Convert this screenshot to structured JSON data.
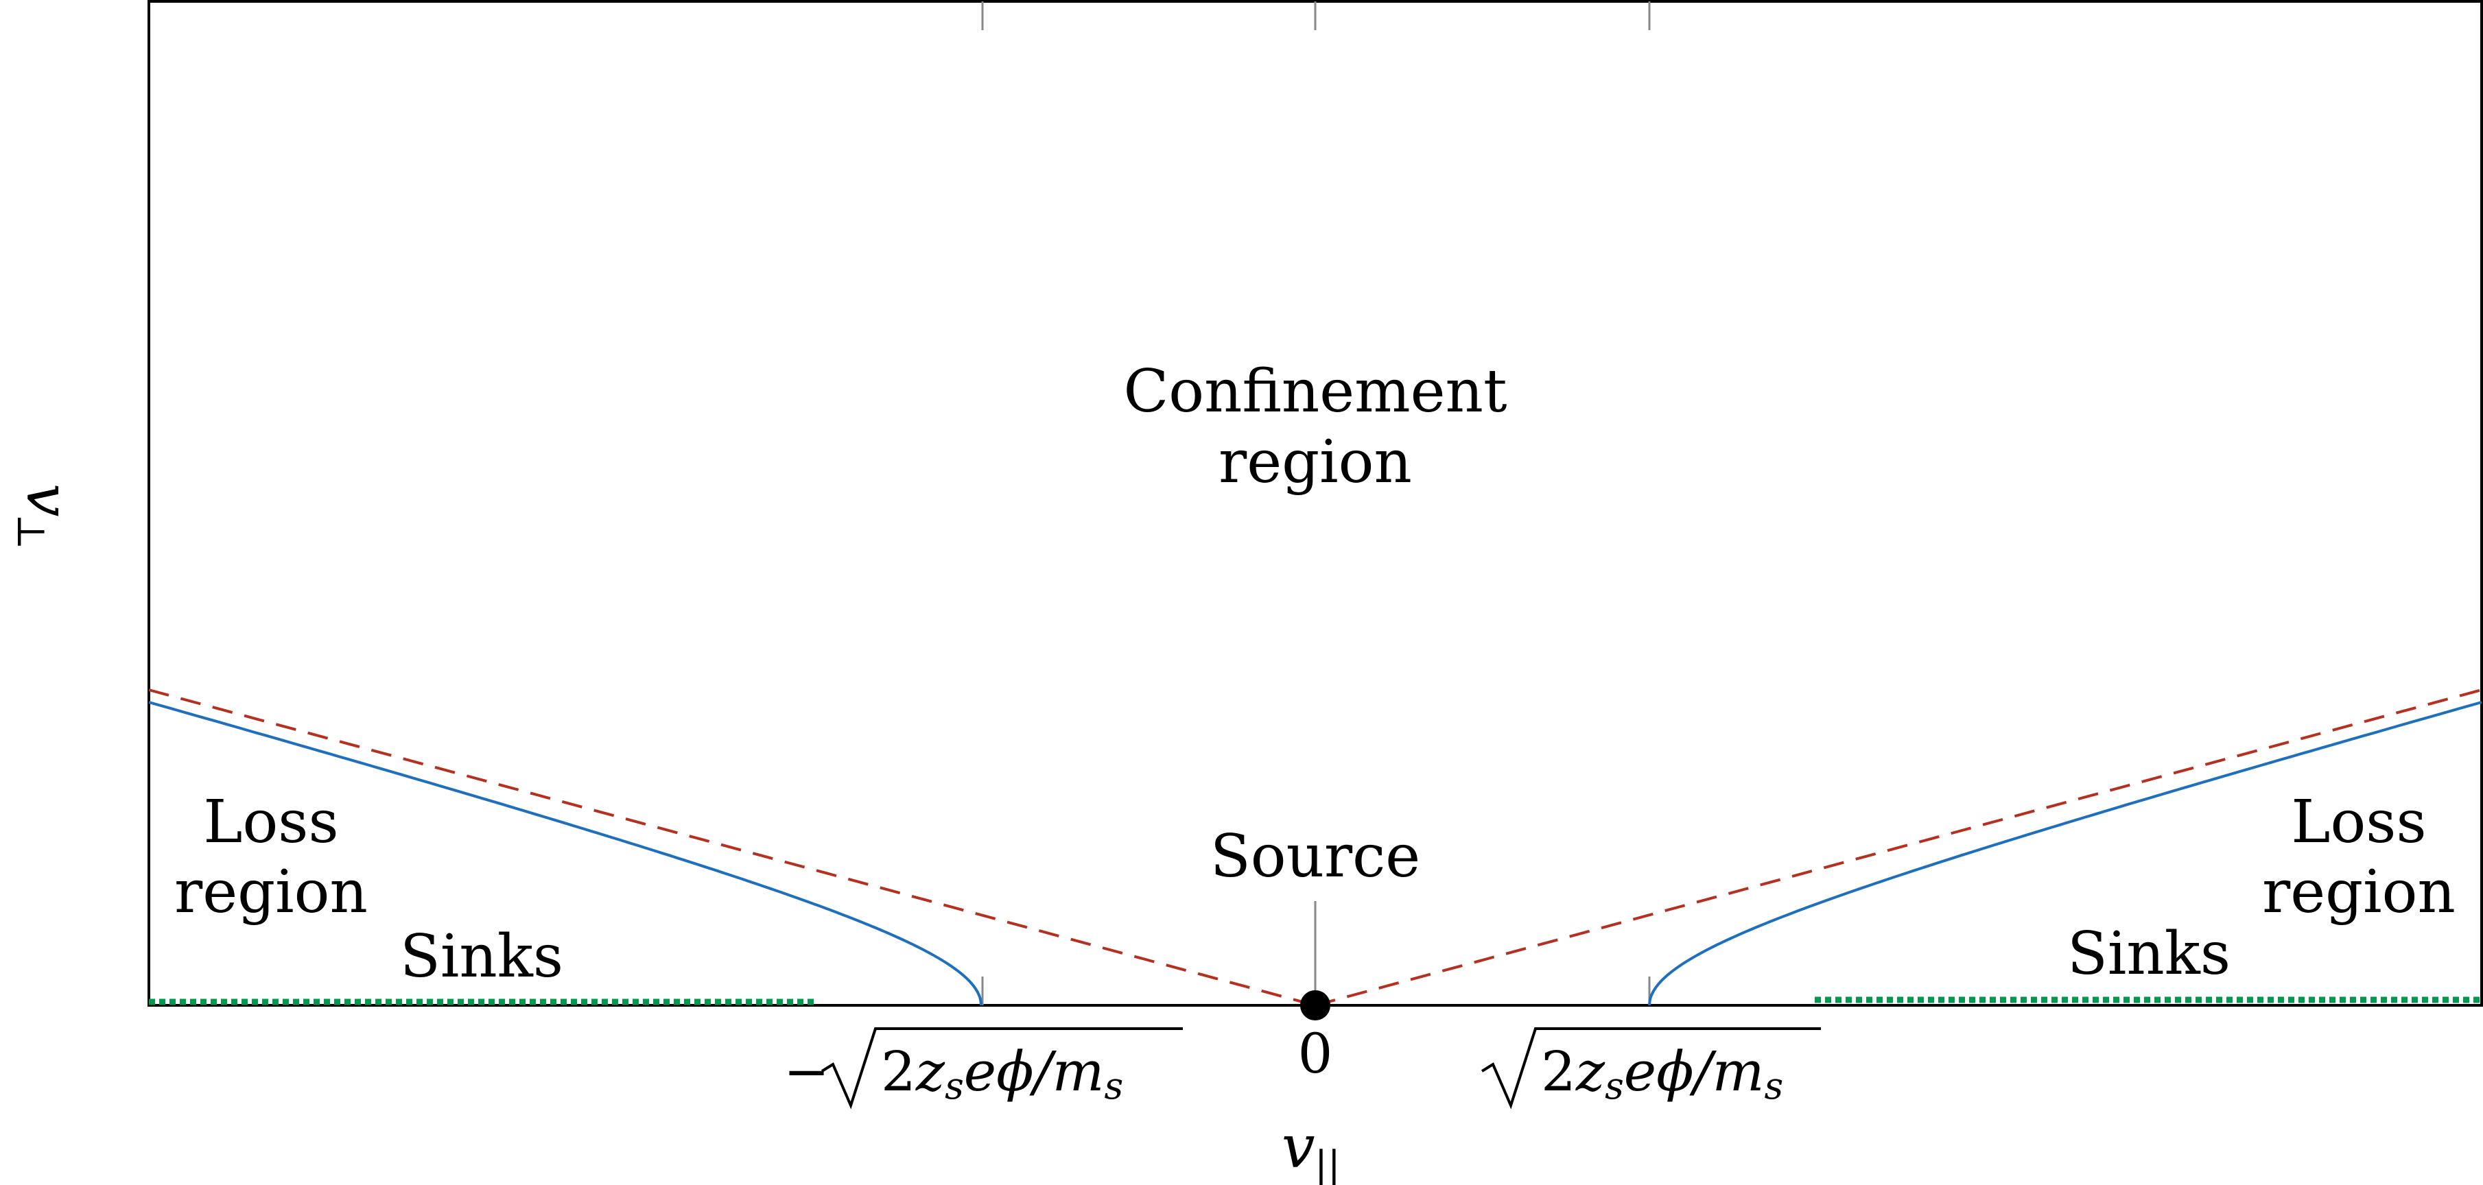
{
  "diagram": {
    "regions": {
      "confinement_line1": "Confinement",
      "confinement_line2": "region",
      "loss_left_line1": "Loss",
      "loss_left_line2": "region",
      "loss_right_line1": "Loss",
      "loss_right_line2": "region",
      "source": "Source",
      "sinks_left": "Sinks",
      "sinks_right": "Sinks"
    },
    "axes": {
      "x_label_main": "v",
      "x_label_sub": "||",
      "y_label_main": "v",
      "y_label_sub": "⊥"
    },
    "ticks": {
      "left": "−√2z_s eφ/m_s",
      "left_minus": "−",
      "left_expr": "2",
      "left_zs": "z",
      "left_s1": "s",
      "left_ephi": "eϕ/m",
      "left_s2": "s",
      "center": "0",
      "right": "√2z_s eφ/m_s",
      "right_expr": "2",
      "right_zs": "z",
      "right_s1": "s",
      "right_ephi": "eϕ/m",
      "right_s2": "s"
    },
    "colors": {
      "loss_cone_boundary": "#1f6fbf",
      "dashed_boundary": "#b5301f",
      "sinks": "#00994d",
      "frame": "#000000"
    },
    "icons": {
      "source_point": "filled-circle"
    }
  }
}
